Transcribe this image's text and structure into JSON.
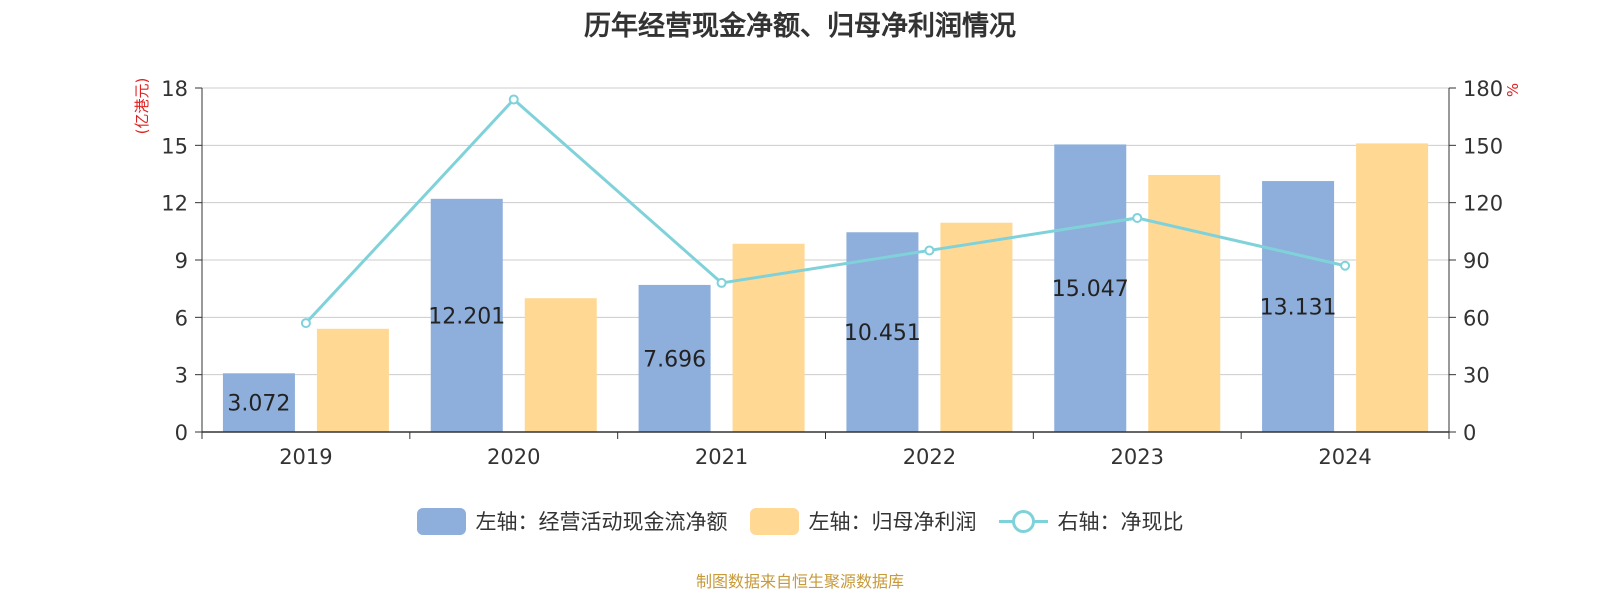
{
  "chart_data": {
    "type": "bar",
    "title": "历年经营现金净额、归母净利润情况",
    "categories": [
      "2019",
      "2020",
      "2021",
      "2022",
      "2023",
      "2024"
    ],
    "left_axis": {
      "unit_label": "(亿港元)",
      "range": [
        0,
        18
      ],
      "ticks": [
        "0",
        "3",
        "6",
        "9",
        "12",
        "15",
        "18"
      ]
    },
    "right_axis": {
      "unit_label": "%",
      "range": [
        0,
        180
      ],
      "ticks": [
        "0",
        "30",
        "60",
        "90",
        "120",
        "150",
        "180"
      ]
    },
    "series": [
      {
        "name": "左轴：经营活动现金流净额",
        "type": "bar",
        "axis": "left",
        "color": "#8eaedb",
        "values": [
          3.072,
          12.201,
          7.696,
          10.451,
          15.047,
          13.131
        ],
        "data_labels": [
          "3.072",
          "12.201",
          "7.696",
          "10.451",
          "15.047",
          "13.131"
        ]
      },
      {
        "name": "左轴：归母净利润",
        "type": "bar",
        "axis": "left",
        "color": "#ffd894",
        "values": [
          5.4,
          7.0,
          9.85,
          10.95,
          13.45,
          15.1
        ]
      },
      {
        "name": "右轴：净现比",
        "type": "line",
        "axis": "right",
        "color": "#80d2da",
        "values": [
          57,
          174,
          78,
          95,
          112,
          87
        ]
      }
    ],
    "grid": true,
    "legend_position": "bottom"
  },
  "footer": "制图数据来自恒生聚源数据库"
}
